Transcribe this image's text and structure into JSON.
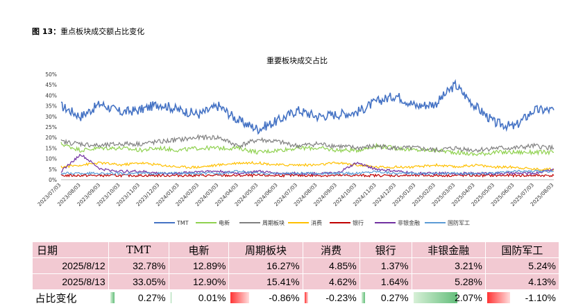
{
  "caption": {
    "label": "图 13：",
    "text": "重点板块成交额占比变化"
  },
  "chart_data": {
    "type": "line",
    "title": "重要板块成交占比",
    "ylim": [
      0,
      50
    ],
    "y_ticks": [
      "0%",
      "5%",
      "10%",
      "15%",
      "20%",
      "25%",
      "30%",
      "35%",
      "40%",
      "45%",
      "50%"
    ],
    "x_labels": [
      "2023/07/03",
      "2023/08/03",
      "2023/09/03",
      "2023/10/03",
      "2023/11/03",
      "2023/12/03",
      "2024/01/03",
      "2024/02/03",
      "2024/03/03",
      "2024/04/03",
      "2024/05/03",
      "2024/06/03",
      "2024/07/03",
      "2024/08/03",
      "2024/09/03",
      "2024/10/03",
      "2024/11/03",
      "2024/12/03",
      "2025/01/03",
      "2025/02/03",
      "2025/03/03",
      "2025/04/03",
      "2025/05/03",
      "2025/06/03",
      "2025/07/03",
      "2025/08/03"
    ],
    "legend_position": "bottom",
    "series": [
      {
        "name": "TMT",
        "color": "#4472c4",
        "values": [
          35,
          30,
          36,
          32,
          33,
          36,
          33,
          31,
          35,
          28,
          24,
          28,
          33,
          30,
          31,
          32,
          37,
          40,
          35,
          36,
          45,
          35,
          27,
          25,
          33,
          33
        ]
      },
      {
        "name": "电新",
        "color": "#8fd14f",
        "values": [
          17,
          14,
          15,
          15,
          14,
          15,
          14,
          15,
          15,
          15,
          13,
          14,
          15,
          15,
          14,
          14,
          16,
          15,
          14,
          14,
          13,
          12,
          13,
          13,
          13,
          13
        ]
      },
      {
        "name": "周期板块",
        "color": "#808080",
        "values": [
          18,
          17,
          16,
          17,
          17,
          18,
          19,
          20,
          20,
          16,
          19,
          18,
          16,
          17,
          16,
          15,
          16,
          15,
          15,
          14,
          15,
          14,
          15,
          15,
          16,
          15
        ]
      },
      {
        "name": "消费",
        "color": "#ffc000",
        "values": [
          6,
          7,
          8,
          7,
          8,
          7,
          6,
          6,
          7,
          8,
          8,
          7,
          7,
          7,
          8,
          7,
          6,
          6,
          6,
          7,
          6,
          7,
          6,
          6,
          5,
          5
        ]
      },
      {
        "name": "银行",
        "color": "#c00000",
        "values": [
          2,
          2,
          2,
          2,
          2,
          2,
          2,
          2,
          2,
          2,
          2,
          2,
          2,
          2,
          2,
          2,
          2,
          2,
          2,
          2,
          2,
          2,
          2,
          2,
          2,
          2
        ]
      },
      {
        "name": "非银金融",
        "color": "#7030a0",
        "values": [
          4,
          12,
          5,
          4,
          4,
          3,
          3,
          4,
          4,
          3,
          4,
          3,
          3,
          3,
          3,
          8,
          5,
          4,
          3,
          3,
          3,
          3,
          3,
          3,
          3,
          5
        ]
      },
      {
        "name": "国防军工",
        "color": "#5b9bd5",
        "values": [
          3,
          3,
          3,
          3,
          3,
          3,
          3,
          3,
          3,
          4,
          3,
          3,
          3,
          3,
          3,
          3,
          4,
          3,
          3,
          3,
          3,
          3,
          3,
          4,
          4,
          4
        ]
      }
    ]
  },
  "table": {
    "headers": [
      "日期",
      "TMT",
      "电新",
      "周期板块",
      "消费",
      "银行",
      "非银金融",
      "国防军工"
    ],
    "rows": [
      [
        "2025/8/12",
        "32.78%",
        "12.89%",
        "16.27%",
        "4.85%",
        "1.37%",
        "3.21%",
        "5.24%"
      ],
      [
        "2025/8/13",
        "33.05%",
        "12.90%",
        "15.41%",
        "4.62%",
        "1.64%",
        "5.28%",
        "4.13%"
      ]
    ],
    "change_label": "占比变化",
    "changes": [
      "0.27%",
      "0.01%",
      "-0.86%",
      "-0.23%",
      "0.27%",
      "2.07%",
      "-1.10%"
    ],
    "change_values": [
      0.27,
      0.01,
      -0.86,
      -0.23,
      0.27,
      2.07,
      -1.1
    ]
  }
}
